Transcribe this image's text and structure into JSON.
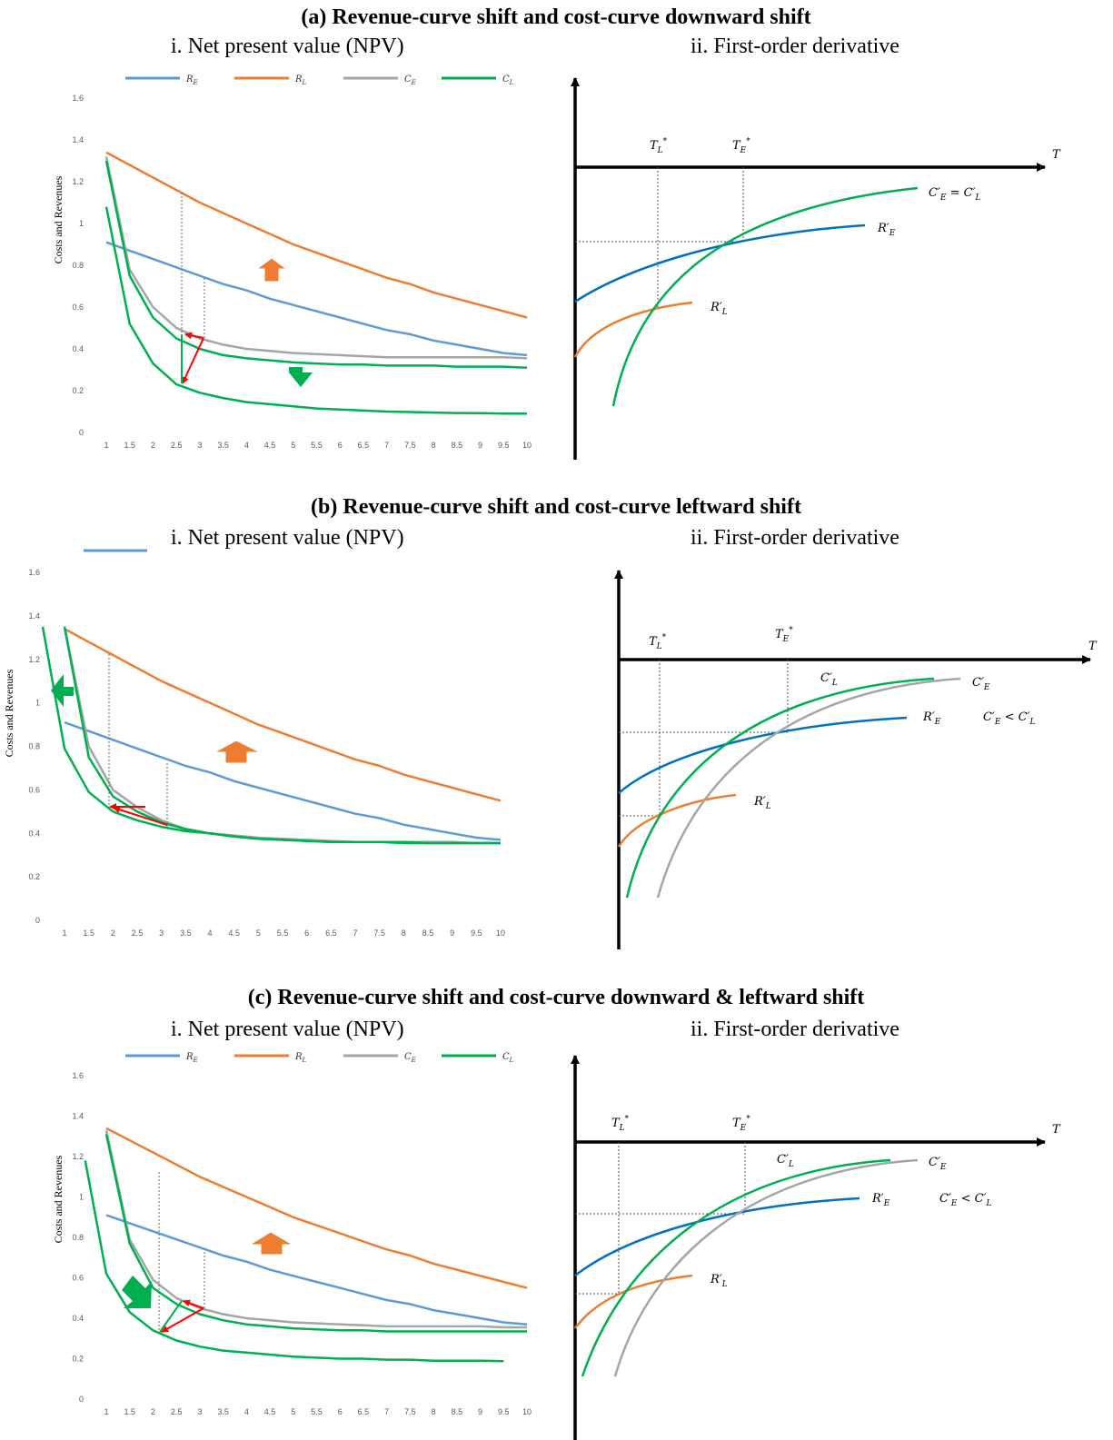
{
  "panels": [
    {
      "title": "(a) Revenue-curve shift and cost-curve downward shift",
      "left_subtitle": "i. Net present value (NPV)",
      "right_subtitle": "ii. First-order derivative",
      "legend": [
        "R_E",
        "R_L",
        "C_E",
        "C_L"
      ],
      "right_labels": {
        "t_l": "T*_L",
        "t_e": "T*_E",
        "axis": "T",
        "c_label": "C'_E = C'_L",
        "r_e": "R'_E",
        "r_l": "R'_L"
      }
    },
    {
      "title": "(b) Revenue-curve shift and cost-curve leftward shift",
      "left_subtitle": "i. Net present value (NPV)",
      "right_subtitle": "ii. First-order derivative",
      "legend": [],
      "right_labels": {
        "t_l": "T*_L",
        "t_e": "T*_E",
        "axis": "T",
        "c_l": "C'_L",
        "c_e": "C'_E",
        "r_e": "R'_E",
        "r_l": "R'_L",
        "relation": "C'_E < C'_L"
      }
    },
    {
      "title": "(c) Revenue-curve shift and cost-curve downward & leftward shift",
      "left_subtitle": "i. Net present value (NPV)",
      "right_subtitle": "ii. First-order derivative",
      "legend": [
        "R_E",
        "R_L",
        "C_E",
        "C_L"
      ],
      "right_labels": {
        "t_l": "T*_L",
        "t_e": "T*_E",
        "axis": "T",
        "c_l": "C'_L",
        "c_e": "C'_E",
        "r_e": "R'_E",
        "r_l": "R'_L",
        "relation": "C'_E < C'_L"
      }
    }
  ],
  "colors": {
    "R_E": "#5b9bd5",
    "R_L": "#ed7d31",
    "C_E": "#a5a5a5",
    "C_L": "#00b050",
    "deriv_R_E": "#0070c0",
    "arrow_red": "#ff0000"
  },
  "chart_data": [
    {
      "type": "line",
      "title": "i. Net present value (NPV)",
      "ylabel": "Costs and Revenues",
      "xlim": [
        1,
        10
      ],
      "ylim": [
        0,
        1.6
      ],
      "x_ticks": [
        "1",
        "1.5",
        "2",
        "2.5",
        "3",
        "3.5",
        "4",
        "4.5",
        "5",
        "5.5",
        "6",
        "6.5",
        "7",
        "7.5",
        "8",
        "8.5",
        "9",
        "9.5",
        "10"
      ],
      "y_ticks": [
        "0",
        "0.2",
        "0.4",
        "0.6",
        "0.8",
        "1",
        "1.2",
        "1.4",
        "1.6"
      ],
      "x": [
        1,
        1.5,
        2,
        2.5,
        3,
        3.5,
        4,
        4.5,
        5,
        5.5,
        6,
        6.5,
        7,
        7.5,
        8,
        8.5,
        9,
        9.5,
        10
      ],
      "series": [
        {
          "name": "R_E",
          "values": [
            0.91,
            0.87,
            0.83,
            0.79,
            0.75,
            0.71,
            0.68,
            0.64,
            0.61,
            0.58,
            0.55,
            0.52,
            0.49,
            0.47,
            0.44,
            0.42,
            0.4,
            0.38,
            0.37
          ]
        },
        {
          "name": "R_L",
          "values": [
            1.34,
            1.28,
            1.22,
            1.16,
            1.1,
            1.05,
            1.0,
            0.95,
            0.9,
            0.86,
            0.82,
            0.78,
            0.74,
            0.71,
            0.67,
            0.64,
            0.61,
            0.58,
            0.55
          ]
        },
        {
          "name": "C_E",
          "values": [
            1.32,
            0.78,
            0.6,
            0.5,
            0.45,
            0.42,
            0.4,
            0.39,
            0.38,
            0.375,
            0.37,
            0.365,
            0.36,
            0.36,
            0.36,
            0.36,
            0.36,
            0.36,
            0.355
          ]
        },
        {
          "name": "C_L",
          "values": [
            1.3,
            0.75,
            0.55,
            0.45,
            0.4,
            0.37,
            0.355,
            0.345,
            0.335,
            0.33,
            0.325,
            0.325,
            0.32,
            0.32,
            0.32,
            0.315,
            0.315,
            0.315,
            0.31
          ]
        },
        {
          "name": "C_L",
          "values": [
            1.08,
            0.52,
            0.33,
            0.23,
            0.19,
            0.165,
            0.145,
            0.135,
            0.125,
            0.115,
            0.11,
            0.105,
            0.1,
            0.098,
            0.095,
            0.093,
            0.092,
            0.09,
            0.09
          ]
        }
      ]
    },
    {
      "type": "line",
      "title": "i. Net present value (NPV)",
      "ylabel": "Costs and Revenues",
      "xlim": [
        1,
        10
      ],
      "ylim": [
        0,
        1.6
      ],
      "x_ticks": [
        "1",
        "1.5",
        "2",
        "2.5",
        "3",
        "3.5",
        "4",
        "4.5",
        "5",
        "5.5",
        "6",
        "6.5",
        "7",
        "7.5",
        "8",
        "8.5",
        "9",
        "9.5",
        "10"
      ],
      "y_ticks": [
        "0",
        "0.2",
        "0.4",
        "0.6",
        "0.8",
        "1",
        "1.2",
        "1.4",
        "1.6"
      ],
      "x": [
        1,
        1.5,
        2,
        2.5,
        3,
        3.5,
        4,
        4.5,
        5,
        5.5,
        6,
        6.5,
        7,
        7.5,
        8,
        8.5,
        9,
        9.5,
        10
      ],
      "series": [
        {
          "name": "R_E",
          "values": [
            0.91,
            0.87,
            0.83,
            0.79,
            0.75,
            0.71,
            0.68,
            0.64,
            0.61,
            0.58,
            0.55,
            0.52,
            0.49,
            0.47,
            0.44,
            0.42,
            0.4,
            0.38,
            0.37
          ]
        },
        {
          "name": "R_L",
          "values": [
            1.34,
            1.28,
            1.22,
            1.16,
            1.1,
            1.05,
            1.0,
            0.95,
            0.9,
            0.86,
            0.82,
            0.78,
            0.74,
            0.71,
            0.67,
            0.64,
            0.61,
            0.58,
            0.55
          ]
        },
        {
          "name": "C_E",
          "values": [
            1.35,
            0.8,
            0.6,
            0.52,
            0.46,
            0.42,
            0.4,
            0.39,
            0.38,
            0.375,
            0.37,
            0.365,
            0.36,
            0.36,
            0.36,
            0.36,
            0.36,
            0.355,
            0.355
          ]
        },
        {
          "name": "C_L",
          "values": [
            1.35,
            0.75,
            0.57,
            0.5,
            0.45,
            0.42,
            0.4,
            0.385,
            0.375,
            0.37,
            0.365,
            0.36,
            0.36,
            0.36,
            0.36,
            0.355,
            0.355,
            0.355,
            0.355
          ]
        },
        {
          "name": "C_L",
          "x": [
            0.55,
            1,
            1.5,
            2,
            2.5,
            3,
            3.5,
            4,
            4.5,
            5,
            5.5,
            6,
            6.5,
            7,
            7.5,
            8,
            8.5,
            9,
            9.5,
            10
          ],
          "values": [
            1.35,
            0.79,
            0.59,
            0.5,
            0.46,
            0.43,
            0.41,
            0.4,
            0.385,
            0.375,
            0.37,
            0.365,
            0.36,
            0.36,
            0.36,
            0.355,
            0.355,
            0.355,
            0.355,
            0.355
          ]
        }
      ]
    },
    {
      "type": "line",
      "title": "i. Net present value (NPV)",
      "ylabel": "Costs and Revenues",
      "xlim": [
        1,
        10
      ],
      "ylim": [
        0,
        1.6
      ],
      "x_ticks": [
        "1",
        "1.5",
        "2",
        "2.5",
        "3",
        "3.5",
        "4",
        "4.5",
        "5",
        "5.5",
        "6",
        "6.5",
        "7",
        "7.5",
        "8",
        "8.5",
        "9",
        "9.5",
        "10"
      ],
      "y_ticks": [
        "0",
        "0.2",
        "0.4",
        "0.6",
        "0.8",
        "1",
        "1.2",
        "1.4",
        "1.6"
      ],
      "x": [
        1,
        1.5,
        2,
        2.5,
        3,
        3.5,
        4,
        4.5,
        5,
        5.5,
        6,
        6.5,
        7,
        7.5,
        8,
        8.5,
        9,
        9.5,
        10
      ],
      "series": [
        {
          "name": "R_E",
          "values": [
            0.91,
            0.87,
            0.83,
            0.79,
            0.75,
            0.71,
            0.68,
            0.64,
            0.61,
            0.58,
            0.55,
            0.52,
            0.49,
            0.47,
            0.44,
            0.42,
            0.4,
            0.38,
            0.37
          ]
        },
        {
          "name": "R_L",
          "values": [
            1.34,
            1.28,
            1.22,
            1.16,
            1.1,
            1.05,
            1.0,
            0.95,
            0.9,
            0.86,
            0.82,
            0.78,
            0.74,
            0.71,
            0.67,
            0.64,
            0.61,
            0.58,
            0.55
          ]
        },
        {
          "name": "C_E",
          "values": [
            1.33,
            0.79,
            0.59,
            0.5,
            0.45,
            0.42,
            0.4,
            0.39,
            0.38,
            0.375,
            0.37,
            0.365,
            0.36,
            0.36,
            0.36,
            0.36,
            0.36,
            0.355,
            0.355
          ]
        },
        {
          "name": "C_L",
          "values": [
            1.31,
            0.77,
            0.55,
            0.47,
            0.42,
            0.39,
            0.37,
            0.36,
            0.35,
            0.345,
            0.34,
            0.34,
            0.335,
            0.335,
            0.335,
            0.335,
            0.335,
            0.335,
            0.335
          ]
        },
        {
          "name": "C_L",
          "x": [
            0.55,
            1,
            1.5,
            2,
            2.5,
            3,
            3.5,
            4,
            4.5,
            5,
            5.5,
            6,
            6.5,
            7,
            7.5,
            8,
            8.5,
            9,
            9.5
          ],
          "values": [
            1.18,
            0.62,
            0.43,
            0.34,
            0.29,
            0.26,
            0.24,
            0.23,
            0.22,
            0.21,
            0.205,
            0.2,
            0.2,
            0.195,
            0.195,
            0.19,
            0.19,
            0.19,
            0.188
          ]
        }
      ]
    }
  ]
}
